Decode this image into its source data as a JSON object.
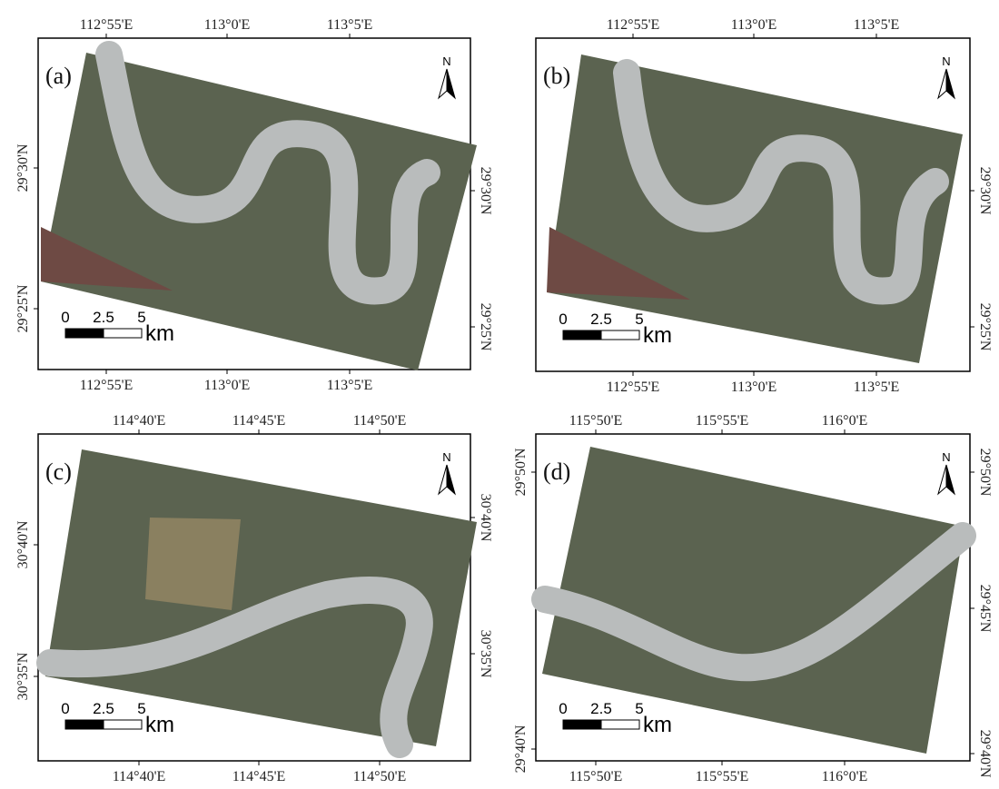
{
  "panels": [
    {
      "label": "(a)",
      "north": "N",
      "top_ticks": [
        "112°55'E",
        "113°0'E",
        "113°5'E"
      ],
      "bottom_ticks": [
        "112°55'E",
        "113°0'E",
        "113°5'E"
      ],
      "left_ticks": [
        "29°30'N",
        "29°25'N"
      ],
      "right_ticks": [
        "29°30'N",
        "29°25'N"
      ],
      "scale": {
        "labels": [
          "0",
          "2.5",
          "5"
        ],
        "unit": "km"
      }
    },
    {
      "label": "(b)",
      "north": "N",
      "top_ticks": [
        "112°55'E",
        "113°0'E",
        "113°5'E"
      ],
      "bottom_ticks": [
        "112°55'E",
        "113°0'E",
        "113°5'E"
      ],
      "right_ticks": [
        "29°30'N",
        "29°25'N"
      ],
      "scale": {
        "labels": [
          "0",
          "2.5",
          "5"
        ],
        "unit": "km"
      }
    },
    {
      "label": "(c)",
      "north": "N",
      "top_ticks": [
        "114°40'E",
        "114°45'E",
        "114°50'E"
      ],
      "bottom_ticks": [
        "114°40'E",
        "114°45'E",
        "114°50'E"
      ],
      "left_ticks": [
        "30°40'N",
        "30°35'N"
      ],
      "right_ticks": [
        "30°40'N",
        "30°35'N"
      ],
      "scale": {
        "labels": [
          "0",
          "2.5",
          "5"
        ],
        "unit": "km"
      }
    },
    {
      "label": "(d)",
      "north": "N",
      "top_ticks": [
        "115°50'E",
        "115°55'E",
        "116°0'E"
      ],
      "bottom_ticks": [
        "115°50'E",
        "115°55'E",
        "116°0'E"
      ],
      "left_ticks": [
        "29°50'N",
        "29°40'N"
      ],
      "right_ticks": [
        "29°50'N",
        "29°45'N",
        "29°40'N"
      ],
      "scale": {
        "labels": [
          "0",
          "2.5",
          "5"
        ],
        "unit": "km"
      }
    }
  ]
}
